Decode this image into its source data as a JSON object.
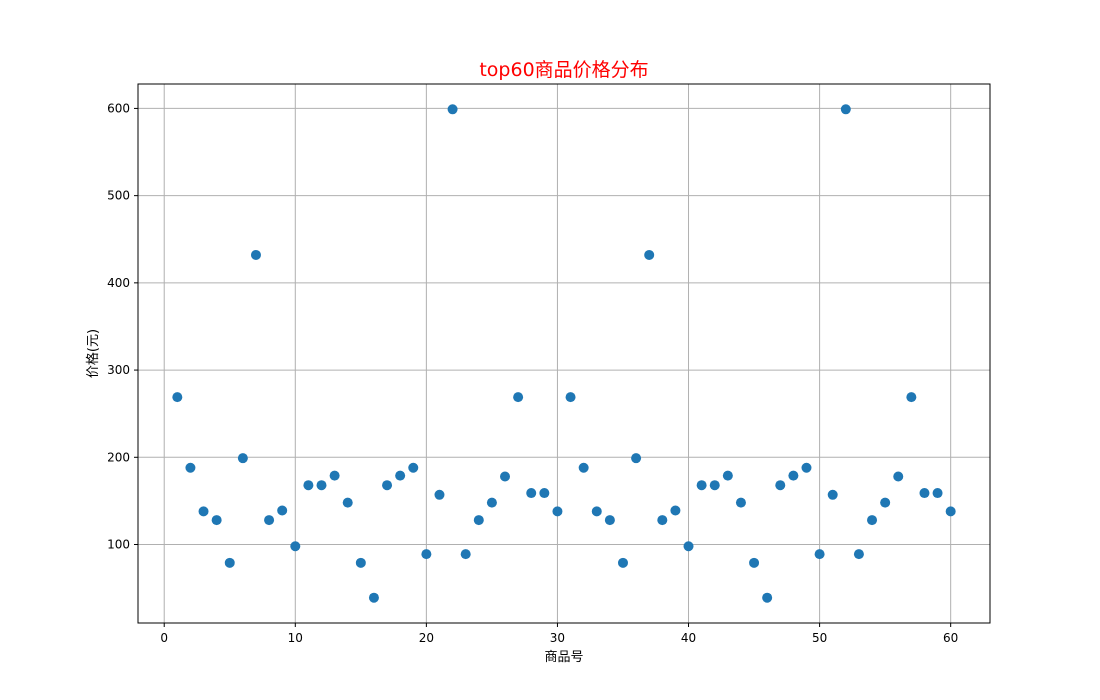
{
  "chart_data": {
    "type": "scatter",
    "title": "top60商品价格分布",
    "xlabel": "商品号",
    "ylabel": "价格(元)",
    "xlim": [
      -2,
      63
    ],
    "ylim": [
      10,
      628
    ],
    "xticks": [
      0,
      10,
      20,
      30,
      40,
      50,
      60
    ],
    "yticks": [
      100,
      200,
      300,
      400,
      500,
      600
    ],
    "grid": true,
    "colors": {
      "title": "#ff0000",
      "marker": "#1f77b4",
      "grid": "#b0b0b0"
    },
    "series": [
      {
        "x": [
          1,
          2,
          3,
          4,
          5,
          6,
          7,
          8,
          9,
          10,
          11,
          12,
          13,
          14,
          15,
          16,
          17,
          18,
          19,
          20,
          21,
          22,
          23,
          24,
          25,
          26,
          27,
          28,
          29,
          30,
          31,
          32,
          33,
          34,
          35,
          36,
          37,
          38,
          39,
          40,
          41,
          42,
          43,
          44,
          45,
          46,
          47,
          48,
          49,
          50,
          51,
          52,
          53,
          54,
          55,
          56,
          57,
          58,
          59,
          60
        ],
        "y": [
          269,
          188,
          138,
          128,
          79,
          199,
          432,
          128,
          139,
          98,
          168,
          168,
          179,
          148,
          79,
          39,
          168,
          179,
          188,
          89,
          157,
          599,
          89,
          128,
          148,
          178,
          269,
          159,
          159,
          138,
          269,
          188,
          138,
          128,
          79,
          199,
          432,
          128,
          139,
          98,
          168,
          168,
          179,
          148,
          79,
          39,
          168,
          179,
          188,
          89,
          157,
          599,
          89,
          128,
          148,
          178,
          269,
          159,
          159,
          138
        ]
      }
    ]
  }
}
